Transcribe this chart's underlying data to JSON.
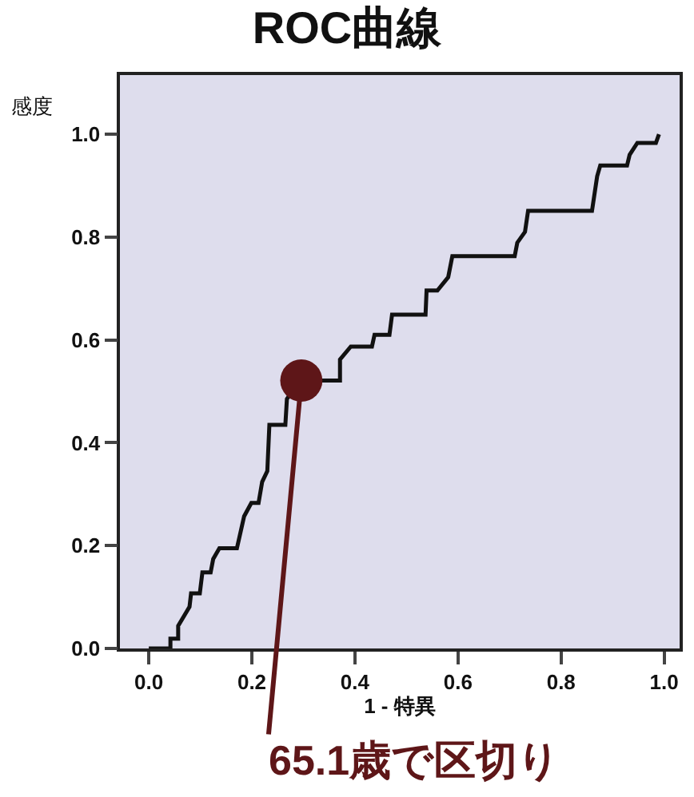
{
  "chart_data": {
    "type": "line",
    "title": "ROC曲線",
    "xlabel": "1 - 特異",
    "ylabel": "感度",
    "x": [
      0,
      0.042,
      0.042,
      0.057,
      0.057,
      0.079,
      0.082,
      0.099,
      0.104,
      0.12,
      0.125,
      0.137,
      0.171,
      0.185,
      0.199,
      0.213,
      0.22,
      0.23,
      0.234,
      0.265,
      0.268,
      0.275,
      0.296,
      0.332,
      0.371,
      0.371,
      0.392,
      0.433,
      0.438,
      0.467,
      0.472,
      0.537,
      0.539,
      0.56,
      0.581,
      0.589,
      0.71,
      0.715,
      0.73,
      0.736,
      0.86,
      0.87,
      0.876,
      0.928,
      0.933,
      0.948,
      0.984,
      0.99
    ],
    "series": [
      {
        "color": "#111111",
        "values": [
          0,
          0,
          0.019,
          0.019,
          0.044,
          0.081,
          0.107,
          0.107,
          0.148,
          0.148,
          0.174,
          0.195,
          0.195,
          0.257,
          0.283,
          0.283,
          0.324,
          0.345,
          0.435,
          0.435,
          0.485,
          0.495,
          0.521,
          0.521,
          0.521,
          0.562,
          0.587,
          0.587,
          0.61,
          0.61,
          0.649,
          0.649,
          0.696,
          0.696,
          0.722,
          0.763,
          0.763,
          0.789,
          0.81,
          0.851,
          0.851,
          0.918,
          0.939,
          0.939,
          0.96,
          0.983,
          0.983,
          1.0
        ]
      }
    ],
    "xlim": [
      -0.056,
      1.03
    ],
    "ylim": [
      0,
      1.115
    ],
    "xticks": [
      {
        "value": 0,
        "label": "0.0"
      },
      0.2,
      0.4,
      0.6,
      0.8,
      {
        "value": 1,
        "label": "1.0"
      }
    ],
    "yticks": [
      {
        "value": 0,
        "label": "0.0"
      },
      0.2,
      0.4,
      0.6,
      0.8,
      {
        "value": 1,
        "label": "1.0"
      }
    ],
    "grid": false,
    "marker": "none",
    "line_style": "solid",
    "annotations": [
      {
        "text": "65.1歳で区切り",
        "x": 0.296,
        "y": 0.521
      }
    ]
  }
}
